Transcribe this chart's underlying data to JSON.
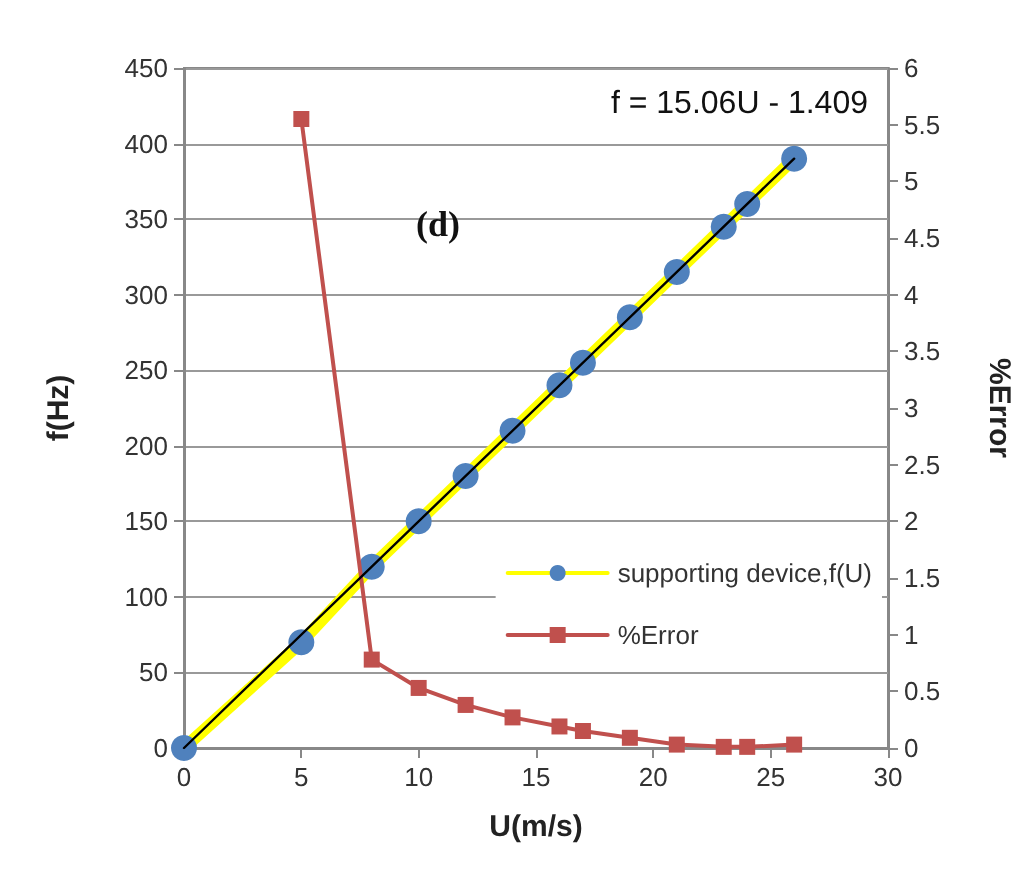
{
  "chart_data": {
    "type": "line",
    "xlabel": "U(m/s)",
    "ylabel": "f(Hz)",
    "y2label": "%Error",
    "annotations": [
      "f = 15.06U - 1.409",
      "(d)"
    ],
    "xlim": [
      0,
      30
    ],
    "xticks": [
      0,
      5,
      10,
      15,
      20,
      25,
      30
    ],
    "ylim": [
      0,
      450
    ],
    "yticks": [
      0,
      50,
      100,
      150,
      200,
      250,
      300,
      350,
      400,
      450
    ],
    "y2lim": [
      0,
      6
    ],
    "y2ticks": [
      0,
      0.5,
      1,
      1.5,
      2,
      2.5,
      3,
      3.5,
      4,
      4.5,
      5,
      5.5,
      6
    ],
    "grid": "y",
    "legend": "right",
    "series": [
      {
        "name": "supporting device,f(U)",
        "color": "#ffff00",
        "marker": "circle",
        "x": [
          0,
          5,
          8,
          10,
          12,
          14,
          16,
          17,
          19,
          21,
          23,
          24,
          26
        ],
        "values": [
          0,
          70,
          120,
          150,
          180,
          210,
          240,
          255,
          285,
          315,
          345,
          360,
          390
        ]
      },
      {
        "name": "%Error",
        "color": "#c0504d",
        "marker": "square",
        "axis": "y2",
        "x": [
          5,
          8,
          10,
          12,
          14,
          16,
          17,
          19,
          21,
          23,
          24,
          26
        ],
        "values": [
          5.55,
          0.78,
          0.53,
          0.38,
          0.27,
          0.19,
          0.15,
          0.09,
          0.03,
          0.01,
          0.01,
          0.03
        ]
      },
      {
        "color": "#000000",
        "marker": "none",
        "x": [
          0,
          26
        ],
        "values": [
          0,
          390
        ]
      }
    ]
  }
}
